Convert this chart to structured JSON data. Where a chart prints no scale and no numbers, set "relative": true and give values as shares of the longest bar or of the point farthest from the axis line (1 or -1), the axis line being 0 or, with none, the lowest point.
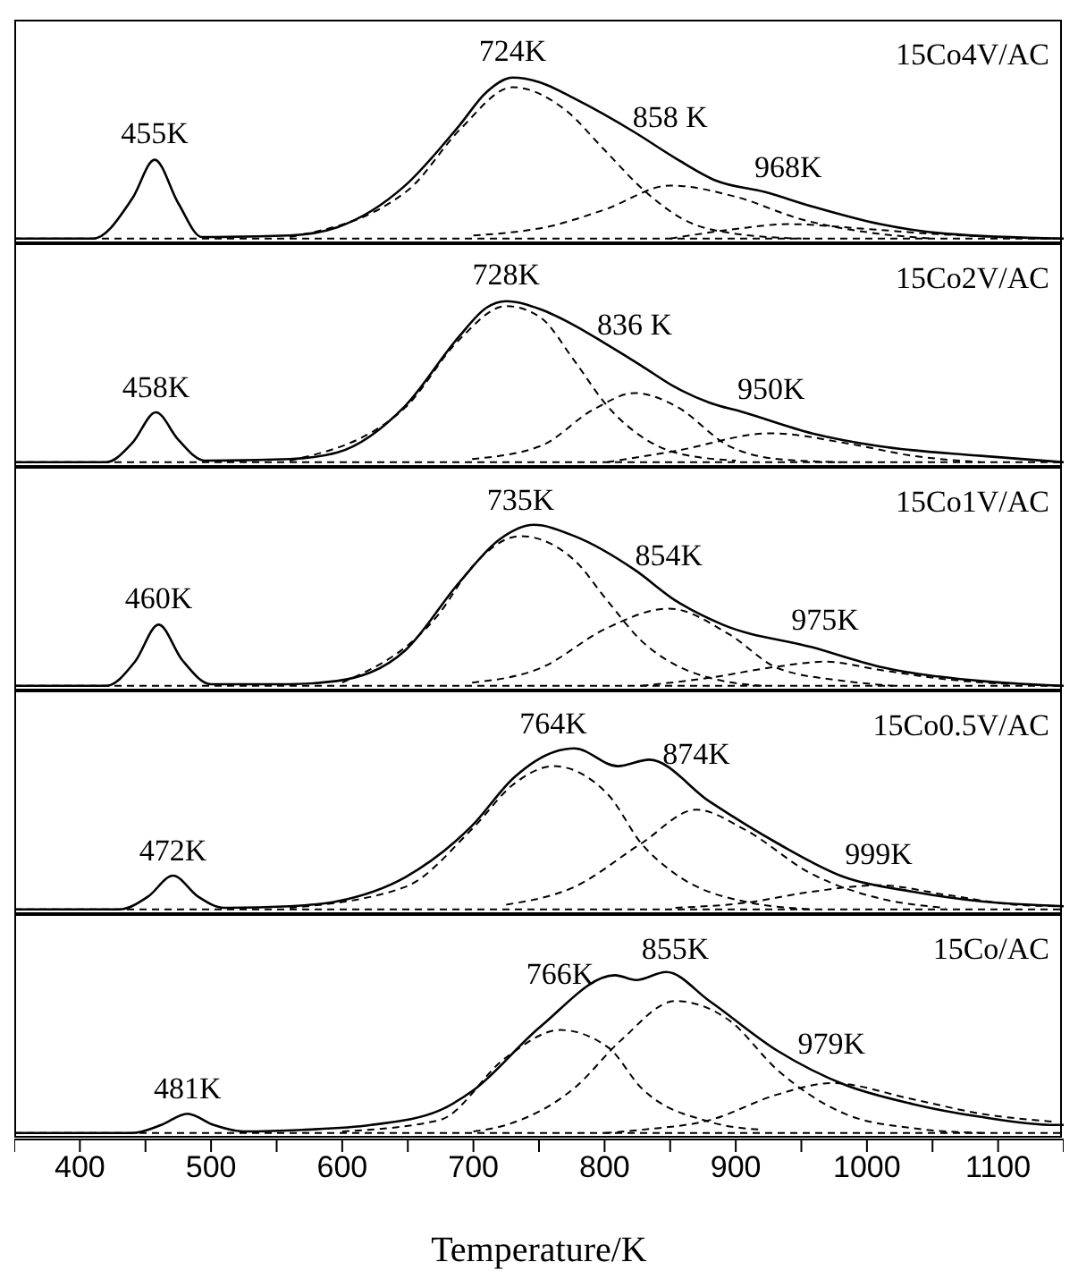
{
  "chart_data": [
    {
      "type": "line",
      "title": "15Co4V/AC",
      "relative": true,
      "xlim": [
        350,
        1150
      ],
      "tick_labels": false,
      "ref_lines": [
        {
          "axis": "y",
          "value": 0,
          "line_style": "dashed",
          "color": "#000000"
        }
      ],
      "series": [
        {
          "color": "#000000",
          "line_style": "solid",
          "x": [
            350,
            410,
            440,
            457,
            475,
            493,
            560,
            596,
            648,
            689,
            710,
            730,
            751,
            777,
            823,
            854,
            885,
            922,
            958,
            1010,
            1061,
            1150
          ],
          "values": [
            0,
            0,
            0.25,
            0.49,
            0.22,
            0.01,
            0.02,
            0.07,
            0.33,
            0.7,
            0.91,
            1,
            0.97,
            0.87,
            0.66,
            0.5,
            0.36,
            0.29,
            0.2,
            0.09,
            0.03,
            0
          ]
        },
        {
          "color": "#000000",
          "line_style": "dashed",
          "x": [
            560,
            650,
            690,
            730,
            770,
            800,
            830,
            860,
            900,
            950
          ],
          "values": [
            0.01,
            0.3,
            0.68,
            0.94,
            0.8,
            0.55,
            0.3,
            0.12,
            0.03,
            0
          ]
        },
        {
          "color": "#000000",
          "line_style": "dashed",
          "x": [
            700,
            760,
            800,
            850,
            900,
            950,
            1000,
            1050
          ],
          "values": [
            0.02,
            0.08,
            0.18,
            0.33,
            0.26,
            0.12,
            0.04,
            0
          ]
        },
        {
          "color": "#000000",
          "line_style": "dashed",
          "x": [
            850,
            900,
            940,
            1000,
            1050,
            1100,
            1140
          ],
          "values": [
            0,
            0.06,
            0.09,
            0.06,
            0.03,
            0.01,
            0
          ]
        }
      ],
      "annotations": [
        {
          "text": "455K",
          "x": 457,
          "y": 0.49
        },
        {
          "text": "724K",
          "x": 730,
          "y": 0.94
        },
        {
          "text": "858 K",
          "x": 850,
          "y": 0.33
        },
        {
          "text": "968K",
          "x": 940,
          "y": 0.09
        }
      ]
    },
    {
      "type": "line",
      "title": "15Co2V/AC",
      "relative": true,
      "xlim": [
        350,
        1150
      ],
      "tick_labels": false,
      "ref_lines": [
        {
          "axis": "y",
          "value": 0,
          "line_style": "dashed",
          "color": "#000000"
        }
      ],
      "series": [
        {
          "color": "#000000",
          "line_style": "solid",
          "x": [
            350,
            420,
            440,
            458,
            475,
            495,
            560,
            596,
            648,
            689,
            710,
            725,
            751,
            777,
            802,
            828,
            853,
            880,
            906,
            958,
            1009,
            1087,
            1150
          ],
          "values": [
            0,
            0,
            0.12,
            0.31,
            0.14,
            0.01,
            0.02,
            0.06,
            0.35,
            0.78,
            0.96,
            1,
            0.95,
            0.85,
            0.73,
            0.6,
            0.47,
            0.37,
            0.31,
            0.18,
            0.1,
            0.04,
            0
          ]
        },
        {
          "color": "#000000",
          "line_style": "dashed",
          "x": [
            560,
            648,
            689,
            725,
            751,
            777,
            802,
            828,
            854,
            900
          ],
          "values": [
            0.01,
            0.34,
            0.76,
            0.97,
            0.9,
            0.63,
            0.35,
            0.16,
            0.06,
            0.01
          ]
        },
        {
          "color": "#000000",
          "line_style": "dashed",
          "x": [
            699,
            751,
            792,
            823,
            854,
            895,
            932,
            980
          ],
          "values": [
            0.02,
            0.1,
            0.33,
            0.43,
            0.35,
            0.1,
            0.02,
            0
          ]
        },
        {
          "color": "#000000",
          "line_style": "dashed",
          "x": [
            802,
            854,
            927,
            983,
            1035,
            1087
          ],
          "values": [
            0,
            0.07,
            0.18,
            0.12,
            0.04,
            0
          ]
        }
      ],
      "annotations": [
        {
          "text": "458K",
          "x": 458,
          "y": 0.31
        },
        {
          "text": "728K",
          "x": 725,
          "y": 0.97
        },
        {
          "text": "836 K",
          "x": 823,
          "y": 0.43
        },
        {
          "text": "950K",
          "x": 927,
          "y": 0.18
        }
      ]
    },
    {
      "type": "line",
      "title": "15Co1V/AC",
      "relative": true,
      "xlim": [
        350,
        1150
      ],
      "tick_labels": false,
      "ref_lines": [
        {
          "axis": "y",
          "value": 0,
          "line_style": "dashed",
          "color": "#000000"
        }
      ],
      "series": [
        {
          "color": "#000000",
          "line_style": "solid",
          "x": [
            350,
            420,
            442,
            460,
            478,
            500,
            560,
            596,
            648,
            689,
            720,
            746,
            777,
            823,
            854,
            890,
            958,
            1009,
            1087,
            1150
          ],
          "values": [
            0,
            0,
            0.15,
            0.38,
            0.16,
            0.01,
            0.01,
            0.03,
            0.22,
            0.64,
            0.91,
            1,
            0.93,
            0.72,
            0.53,
            0.38,
            0.24,
            0.12,
            0.03,
            0
          ]
        },
        {
          "color": "#000000",
          "line_style": "dashed",
          "x": [
            600,
            674,
            699,
            736,
            777,
            802,
            828,
            854,
            880,
            920
          ],
          "values": [
            0.02,
            0.45,
            0.74,
            0.93,
            0.78,
            0.53,
            0.28,
            0.13,
            0.05,
            0
          ]
        },
        {
          "color": "#000000",
          "line_style": "dashed",
          "x": [
            699,
            751,
            802,
            849,
            895,
            932,
            983,
            1020
          ],
          "values": [
            0.02,
            0.11,
            0.36,
            0.48,
            0.32,
            0.11,
            0.03,
            0
          ]
        },
        {
          "color": "#000000",
          "line_style": "dashed",
          "x": [
            828,
            880,
            932,
            968,
            1009,
            1061,
            1110
          ],
          "values": [
            0,
            0.05,
            0.12,
            0.15,
            0.1,
            0.04,
            0.01
          ]
        }
      ],
      "annotations": [
        {
          "text": "460K",
          "x": 460,
          "y": 0.38
        },
        {
          "text": "735K",
          "x": 736,
          "y": 0.93
        },
        {
          "text": "854K",
          "x": 849,
          "y": 0.48
        },
        {
          "text": "975K",
          "x": 968,
          "y": 0.15
        }
      ]
    },
    {
      "type": "line",
      "title": "15Co0.5V/AC",
      "relative": true,
      "xlim": [
        350,
        1150
      ],
      "tick_labels": false,
      "ref_lines": [
        {
          "axis": "y",
          "value": 0,
          "line_style": "dashed",
          "color": "#000000"
        }
      ],
      "series": [
        {
          "color": "#000000",
          "line_style": "solid",
          "x": [
            350,
            430,
            452,
            471,
            490,
            510,
            560,
            596,
            648,
            699,
            731,
            762,
            777,
            810,
            834,
            880,
            932,
            983,
            1035,
            1087,
            1150
          ],
          "values": [
            0,
            0,
            0.08,
            0.21,
            0.08,
            0.01,
            0.02,
            0.05,
            0.2,
            0.52,
            0.82,
            0.98,
            1,
            0.89,
            0.93,
            0.67,
            0.41,
            0.2,
            0.11,
            0.05,
            0.02
          ]
        },
        {
          "color": "#000000",
          "line_style": "dashed",
          "x": [
            560,
            648,
            699,
            731,
            761,
            803,
            828,
            854,
            906,
            960
          ],
          "values": [
            0.01,
            0.14,
            0.5,
            0.78,
            0.89,
            0.71,
            0.41,
            0.22,
            0.05,
            0
          ]
        },
        {
          "color": "#000000",
          "line_style": "dashed",
          "x": [
            725,
            777,
            828,
            870,
            906,
            958,
            1009,
            1060
          ],
          "values": [
            0.03,
            0.14,
            0.41,
            0.62,
            0.5,
            0.22,
            0.07,
            0.01
          ]
        },
        {
          "color": "#000000",
          "line_style": "dashed",
          "x": [
            854,
            906,
            958,
            1009,
            1061,
            1112,
            1145
          ],
          "values": [
            0.01,
            0.04,
            0.11,
            0.15,
            0.09,
            0.03,
            0.02
          ]
        }
      ],
      "annotations": [
        {
          "text": "472K",
          "x": 471,
          "y": 0.21
        },
        {
          "text": "764K",
          "x": 761,
          "y": 0.89
        },
        {
          "text": "874K",
          "x": 870,
          "y": 0.62
        },
        {
          "text": "999K",
          "x": 1009,
          "y": 0.15
        }
      ]
    },
    {
      "type": "line",
      "title": "15Co/AC",
      "relative": true,
      "xlim": [
        350,
        1150
      ],
      "tick_labels": "x",
      "xlabel": "Temperature/K",
      "ref_lines": [
        {
          "axis": "y",
          "value": 0,
          "line_style": "dashed",
          "color": "#000000"
        }
      ],
      "xticks": [
        {
          "value": 350,
          "label": null
        },
        400,
        {
          "value": 450,
          "label": null
        },
        500,
        {
          "value": 550,
          "label": null
        },
        600,
        {
          "value": 650,
          "label": null
        },
        700,
        {
          "value": 750,
          "label": null
        },
        800,
        {
          "value": 850,
          "label": null
        },
        900,
        {
          "value": 950,
          "label": null
        },
        1000,
        {
          "value": 1050,
          "label": null
        },
        1100,
        {
          "value": 1150,
          "label": null
        }
      ],
      "series": [
        {
          "color": "#000000",
          "line_style": "solid",
          "x": [
            350,
            440,
            462,
            482,
            502,
            525,
            570,
            622,
            674,
            699,
            751,
            808,
            824,
            847,
            880,
            932,
            983,
            1035,
            1087,
            1143,
            1150
          ],
          "values": [
            0,
            0,
            0.05,
            0.12,
            0.05,
            0.01,
            0.02,
            0.05,
            0.14,
            0.26,
            0.66,
            0.98,
            0.95,
            1,
            0.82,
            0.51,
            0.3,
            0.18,
            0.1,
            0.05,
            0.05
          ]
        },
        {
          "color": "#000000",
          "line_style": "dashed",
          "x": [
            600,
            674,
            725,
            766,
            803,
            828,
            880,
            920
          ],
          "values": [
            0.01,
            0.08,
            0.47,
            0.64,
            0.53,
            0.28,
            0.07,
            0.02
          ]
        },
        {
          "color": "#000000",
          "line_style": "dashed",
          "x": [
            700,
            725,
            777,
            813,
            854,
            895,
            932,
            983,
            1035,
            1090
          ],
          "values": [
            0.01,
            0.05,
            0.28,
            0.58,
            0.82,
            0.7,
            0.39,
            0.12,
            0.03,
            0
          ]
        },
        {
          "color": "#000000",
          "line_style": "dashed",
          "x": [
            800,
            828,
            880,
            932,
            973,
            1035,
            1087,
            1143
          ],
          "values": [
            0,
            0.02,
            0.08,
            0.24,
            0.31,
            0.21,
            0.12,
            0.07
          ]
        }
      ],
      "annotations": [
        {
          "text": "481K",
          "x": 482,
          "y": 0.12
        },
        {
          "text": "766K",
          "x": 766,
          "y": 0.64
        },
        {
          "text": "855K",
          "x": 854,
          "y": 0.82
        },
        {
          "text": "979K",
          "x": 973,
          "y": 0.31
        }
      ]
    }
  ]
}
